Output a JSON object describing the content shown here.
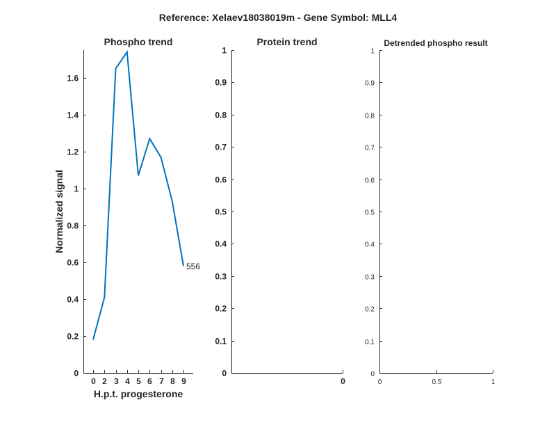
{
  "suptitle": "Reference:  Xelaev18038019m - Gene Symbol:  MLL4",
  "colors": {
    "series": "#0072BD",
    "axis": "#262626",
    "background": "#ffffff"
  },
  "chart_data": [
    {
      "type": "line",
      "title": "Phospho trend",
      "xlabel": "H.p.t. progesterone",
      "ylabel": "Normalized signal",
      "x_ticks": [
        "0",
        "2",
        "3",
        "4",
        "5",
        "6",
        "7",
        "8",
        "9"
      ],
      "y_ticks": [
        "0",
        "0.2",
        "0.4",
        "0.6",
        "0.8",
        "1",
        "1.2",
        "1.4",
        "1.6"
      ],
      "ylim": [
        0,
        1.75
      ],
      "series": [
        {
          "x": [
            0,
            1,
            2,
            3,
            4,
            5,
            6,
            7,
            8
          ],
          "values": [
            0.18,
            0.41,
            1.65,
            1.74,
            1.07,
            1.27,
            1.17,
            0.93,
            0.58
          ],
          "end_label": "556"
        }
      ]
    },
    {
      "type": "line",
      "title": "Protein trend",
      "xlabel": "",
      "ylabel": "",
      "x_ticks": [
        "0"
      ],
      "y_ticks": [
        "0",
        "0.1",
        "0.2",
        "0.3",
        "0.4",
        "0.5",
        "0.6",
        "0.7",
        "0.8",
        "0.9",
        "1"
      ],
      "ylim": [
        0,
        1
      ],
      "series": []
    },
    {
      "type": "line",
      "title": "Detrended phospho result",
      "xlabel": "",
      "ylabel": "",
      "x_ticks": [
        "0",
        "0.5",
        "1"
      ],
      "xlim": [
        0,
        1
      ],
      "y_ticks": [
        "0",
        "0.1",
        "0.2",
        "0.3",
        "0.4",
        "0.5",
        "0.6",
        "0.7",
        "0.8",
        "0.9",
        "1"
      ],
      "ylim": [
        0,
        1
      ],
      "series": []
    }
  ]
}
